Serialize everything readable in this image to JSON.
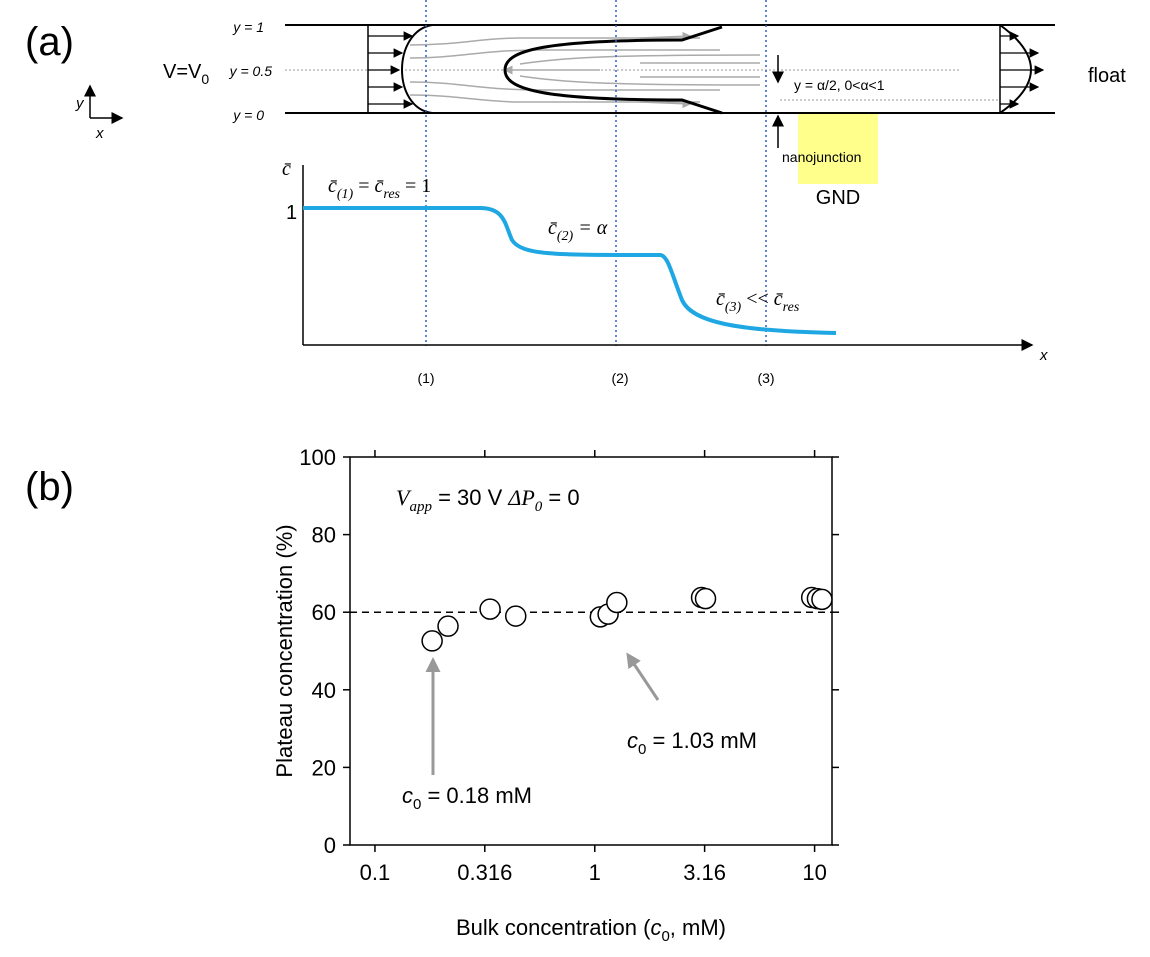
{
  "panel_a": {
    "label": "(a)",
    "axis_y": "y",
    "axis_x": "x",
    "y_levels": [
      "y = 1",
      "y = 0.5",
      "y = 0"
    ],
    "inlet": [
      "V=V",
      "0"
    ],
    "outlet": "float",
    "alpha_note": "y = α/2, 0<α<1",
    "nanojunction": "nanojunction",
    "ground": "GND",
    "c_axis": "c̄",
    "c_one": "1",
    "c1": [
      "c̄",
      "(1)",
      " = ",
      "c̄",
      "res",
      " = 1"
    ],
    "c2": [
      "c̄",
      "(2)",
      " = α"
    ],
    "c3": [
      "c̄",
      "(3)",
      " << ",
      "c̄",
      "res"
    ],
    "positions": [
      "(1)",
      "(2)",
      "(3)"
    ],
    "x_axis": "x"
  },
  "panel_b_label": "(b)",
  "chart_data": {
    "type": "scatter",
    "y_label": "Plateau concentration (%)",
    "x_label": [
      "Bulk concentration (",
      "c",
      "0",
      ", mM)"
    ],
    "xscale": "log",
    "xlim": [
      0.077,
      12
    ],
    "ylim": [
      0,
      100
    ],
    "xticks": [
      0.1,
      0.316,
      1,
      3.16,
      10
    ],
    "yticks": [
      0,
      20,
      40,
      60,
      80,
      100
    ],
    "x": [
      0.182,
      0.215,
      0.334,
      0.437,
      1.06,
      1.15,
      1.26,
      3.06,
      3.19,
      9.7,
      10.3,
      10.8
    ],
    "values": [
      52.6,
      56.4,
      60.8,
      59.0,
      58.8,
      59.5,
      62.5,
      63.8,
      63.5,
      63.8,
      63.5,
      63.3
    ],
    "marker_fill": "#ffffff",
    "marker_edge": "#000000",
    "reference_line": 60,
    "annotations": [
      {
        "parts": [
          "V",
          "app",
          " = 30 V ",
          "ΔP",
          "0",
          " = 0"
        ]
      },
      {
        "parts": [
          "c",
          "0",
          " = 0.18 mM"
        ]
      },
      {
        "parts": [
          "c",
          "0",
          " = 1.03 mM"
        ]
      }
    ]
  }
}
